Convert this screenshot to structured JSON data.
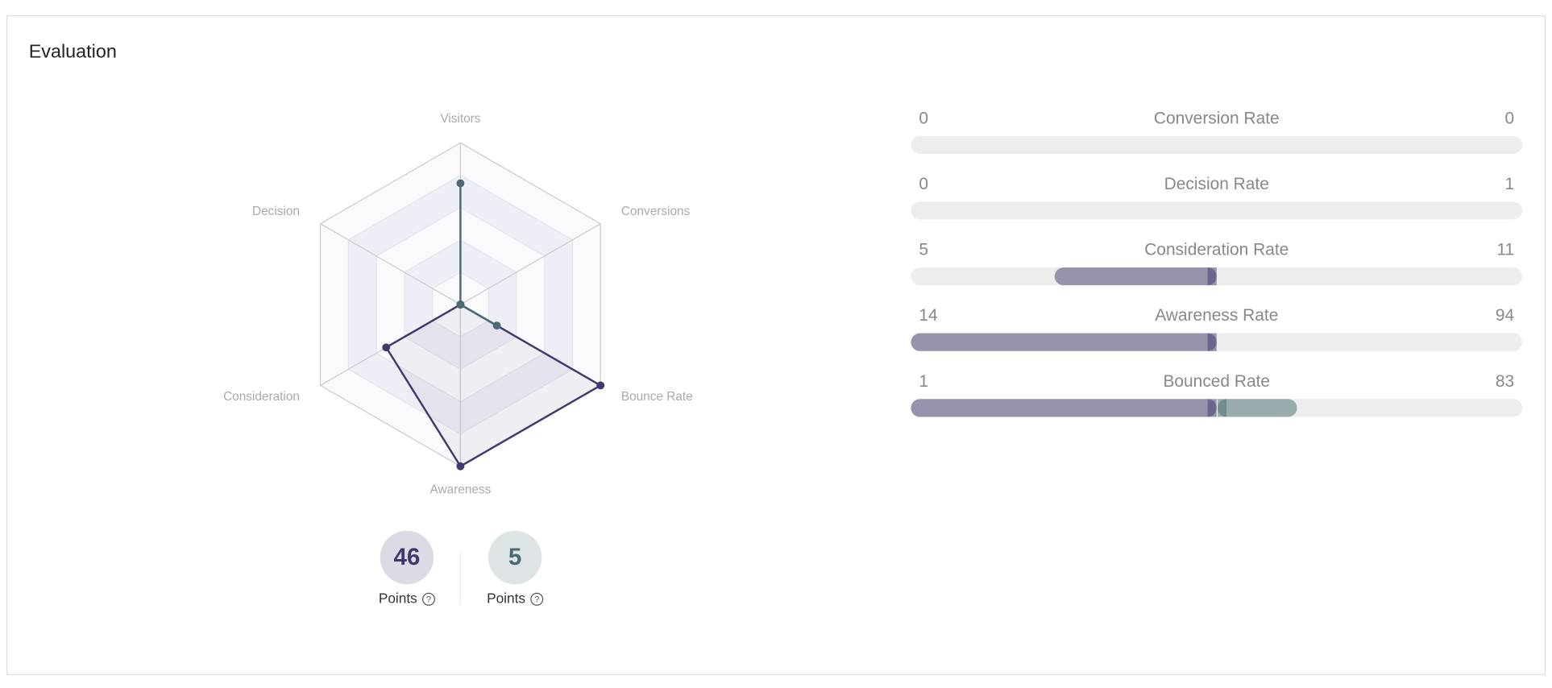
{
  "title": "Evaluation",
  "chart_data": {
    "type": "radar",
    "categories": [
      "Visitors",
      "Conversions",
      "Bounce Rate",
      "Awareness",
      "Consideration",
      "Decision"
    ],
    "series": [
      {
        "color": "#3f3a6e",
        "values": [
          0,
          0,
          100,
          100,
          53,
          0
        ]
      },
      {
        "color": "#4a6b72",
        "values": [
          75,
          0,
          26,
          0,
          0,
          0
        ]
      }
    ],
    "rlim": [
      0,
      100
    ],
    "rticks": [
      20,
      40,
      60,
      80,
      100
    ]
  },
  "scores": [
    {
      "value": 46,
      "label": "Points"
    },
    {
      "value": 5,
      "label": "Points"
    }
  ],
  "rows": [
    {
      "label": "Conversion Rate",
      "left": 0,
      "right": 0
    },
    {
      "label": "Decision Rate",
      "left": 0,
      "right": 1
    },
    {
      "label": "Consideration Rate",
      "left": 5,
      "right": 11
    },
    {
      "label": "Awareness Rate",
      "left": 14,
      "right": 94
    },
    {
      "label": "Bounced Rate",
      "left": 1,
      "right": 83
    }
  ]
}
